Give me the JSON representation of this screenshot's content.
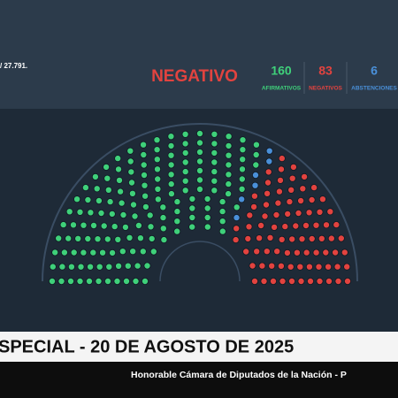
{
  "header": {
    "session_text": "/ 27.791.",
    "result": "NEGATIVO",
    "counts": [
      {
        "value": 160,
        "label": "AFIRMATIVOS",
        "color": "#3fd07a"
      },
      {
        "value": 83,
        "label": "NEGATIVOS",
        "color": "#e2433f"
      },
      {
        "value": 6,
        "label": "ABSTENCIONES",
        "color": "#4a90d9"
      }
    ]
  },
  "banner": {
    "title": "SPECIAL - 20 DE AGOSTO DE 2025",
    "subtitle": "Honorable Cámara de Diputados de la Nación - P"
  }
}
